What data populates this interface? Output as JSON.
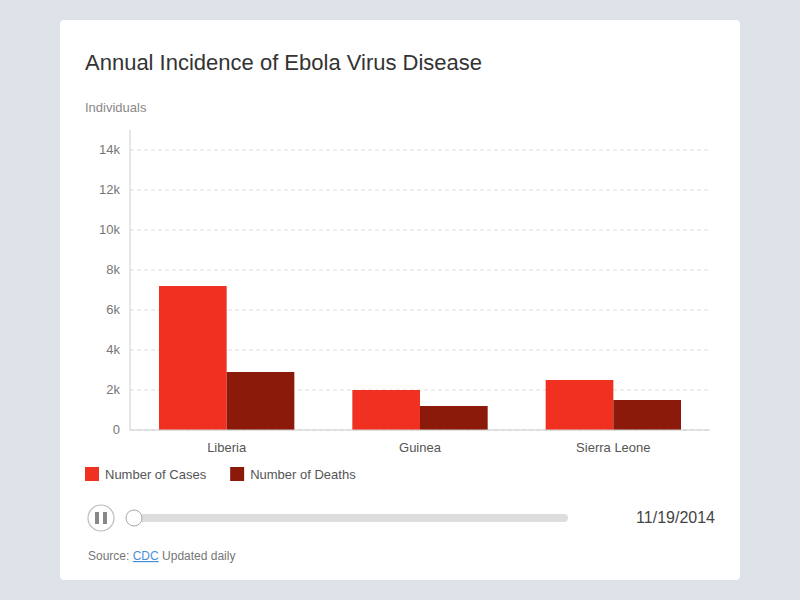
{
  "chart_data": {
    "type": "bar",
    "title": "Annual Incidence of Ebola Virus Disease",
    "ylabel": "Individuals",
    "categories": [
      "Liberia",
      "Guinea",
      "Sierra Leone"
    ],
    "series": [
      {
        "name": "Number of Cases",
        "color": "#f03020",
        "values": [
          7200,
          2000,
          2500
        ]
      },
      {
        "name": "Number of Deaths",
        "color": "#8b1a0a",
        "values": [
          2900,
          1200,
          1500
        ]
      }
    ],
    "ylim": [
      0,
      15000
    ],
    "yticks": [
      0,
      {
        "value": 2000,
        "label": "2k"
      },
      {
        "value": 4000,
        "label": "4k"
      },
      {
        "value": 6000,
        "label": "6k"
      },
      {
        "value": 8000,
        "label": "8k"
      },
      {
        "value": 10000,
        "label": "10k"
      },
      {
        "value": 12000,
        "label": "12k"
      },
      {
        "value": 14000,
        "label": "14k"
      }
    ],
    "grid": true,
    "legend": "lower left",
    "annotations": [
      "11/19/2014",
      "Source: ",
      "CDC",
      " Updated daily"
    ]
  }
}
